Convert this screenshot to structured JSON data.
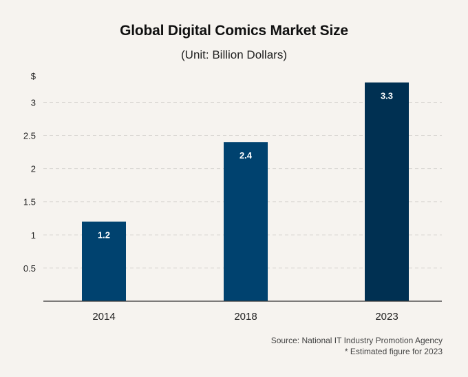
{
  "chart_data": {
    "type": "bar",
    "title": "Global Digital Comics Market Size",
    "subtitle": "(Unit: Billion Dollars)",
    "ylabel": "$",
    "categories": [
      "2014",
      "2018",
      "2023"
    ],
    "values": [
      1.2,
      2.4,
      3.3
    ],
    "data_labels": [
      "1.2",
      "2.4",
      "3.3"
    ],
    "yticks": [
      0.5,
      1,
      1.5,
      2,
      2.5,
      3
    ],
    "ytick_labels": [
      "0.5",
      "1",
      "1.5",
      "2",
      "2.5",
      "3"
    ],
    "ylim": [
      0,
      3.4
    ],
    "grid": "horizontal-dashed",
    "colors": {
      "bars": [
        "#00426f",
        "#00426f",
        "#003052"
      ],
      "grid": "#d9d6d2",
      "axis": "#333333",
      "background": "#f6f3ef"
    },
    "notes": {
      "source": "Source: National IT Industry Promotion Agency",
      "estimate": "* Estimated figure for 2023"
    }
  }
}
